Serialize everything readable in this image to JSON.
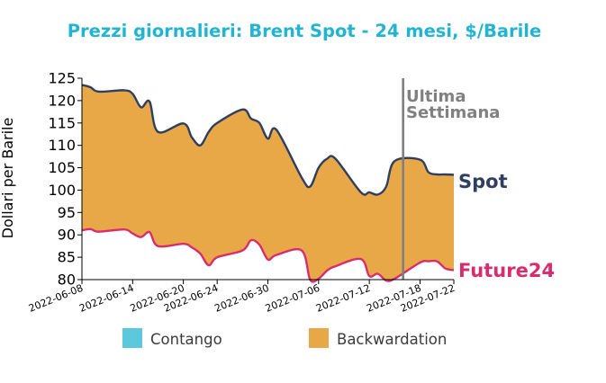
{
  "chart_data": {
    "type": "area",
    "title": "Prezzi giornalieri: Brent Spot - 24 mesi, $/Barile",
    "ylabel": "Dollari per Barile",
    "xlabel": "",
    "ylim": [
      80,
      125
    ],
    "yticks": [
      80,
      85,
      90,
      95,
      100,
      105,
      110,
      115,
      120,
      125
    ],
    "xlim": [
      "2022-06-08",
      "2022-07-22"
    ],
    "xticks": [
      "2022-06-08",
      "2022-06-14",
      "2022-06-20",
      "2022-06-24",
      "2022-06-30",
      "2022-07-06",
      "2022-07-12",
      "2022-07-18",
      "2022-07-22"
    ],
    "x": [
      "2022-06-08",
      "2022-06-09",
      "2022-06-10",
      "2022-06-13",
      "2022-06-14",
      "2022-06-15",
      "2022-06-16",
      "2022-06-17",
      "2022-06-20",
      "2022-06-21",
      "2022-06-22",
      "2022-06-23",
      "2022-06-24",
      "2022-06-27",
      "2022-06-28",
      "2022-06-29",
      "2022-06-30",
      "2022-07-01",
      "2022-07-04",
      "2022-07-05",
      "2022-07-06",
      "2022-07-07",
      "2022-07-08",
      "2022-07-11",
      "2022-07-12",
      "2022-07-13",
      "2022-07-14",
      "2022-07-15",
      "2022-07-18",
      "2022-07-19",
      "2022-07-20",
      "2022-07-21",
      "2022-07-22"
    ],
    "series": [
      {
        "name": "Spot",
        "color": "#2e3f5f",
        "values": [
          123.5,
          123.0,
          122.0,
          122.3,
          121.5,
          118.5,
          119.8,
          113.0,
          114.9,
          111.8,
          110.0,
          113.0,
          115.0,
          118.0,
          116.0,
          115.0,
          111.5,
          113.5,
          102.8,
          100.8,
          105.0,
          107.0,
          107.0,
          99.5,
          99.5,
          99.0,
          100.8,
          106.5,
          106.8,
          104.0,
          103.5,
          103.5,
          103.4
        ]
      },
      {
        "name": "Future24",
        "color": "#d72c6e",
        "values": [
          91.0,
          91.3,
          90.7,
          91.2,
          90.3,
          89.5,
          90.6,
          87.5,
          88.0,
          87.2,
          85.8,
          83.2,
          85.0,
          86.5,
          88.8,
          87.8,
          84.5,
          85.5,
          86.5,
          80.0,
          80.2,
          82.0,
          83.0,
          84.6,
          80.8,
          81.3,
          79.8,
          80.2,
          83.8,
          84.1,
          84.1,
          82.5,
          82.1
        ]
      }
    ],
    "fills": [
      {
        "name": "Contango",
        "color": "#5bc8de"
      },
      {
        "name": "Backwardation",
        "color": "#e8a848"
      }
    ],
    "annotation": {
      "line1": "Ultima",
      "line2": "Settimana",
      "x": "2022-07-16",
      "color": "#808080"
    },
    "title_color": "#22b4d1",
    "legend_placement": "bottom"
  }
}
